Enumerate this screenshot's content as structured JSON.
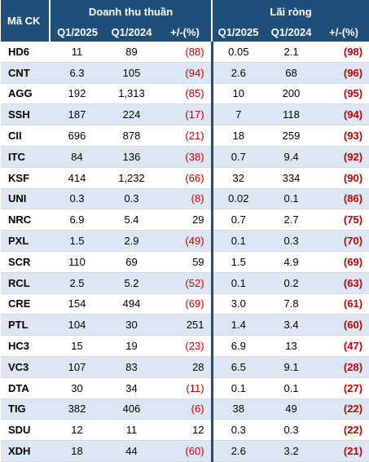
{
  "header": {
    "code_label": "Mã CK",
    "group_revenue": "Doanh thu thuần",
    "group_profit": "Lãi  ròng",
    "sub": [
      "Q1/2025",
      "Q1/2024",
      "+/-(%)",
      "Q1/2025",
      "Q1/2024",
      "+/-(%)"
    ]
  },
  "rows": [
    {
      "code": "HD6",
      "r25": "11",
      "r24": "89",
      "rc": "(88)",
      "rneg": true,
      "p25": "0.05",
      "p24": "2.1",
      "pc": "(98)"
    },
    {
      "code": "CNT",
      "r25": "6.3",
      "r24": "105",
      "rc": "(94)",
      "rneg": true,
      "p25": "2.6",
      "p24": "68",
      "pc": "(96)"
    },
    {
      "code": "AGG",
      "r25": "192",
      "r24": "1,313",
      "rc": "(85)",
      "rneg": true,
      "p25": "10",
      "p24": "200",
      "pc": "(95)"
    },
    {
      "code": "SSH",
      "r25": "187",
      "r24": "224",
      "rc": "(17)",
      "rneg": true,
      "p25": "7",
      "p24": "118",
      "pc": "(94)"
    },
    {
      "code": "CII",
      "r25": "696",
      "r24": "878",
      "rc": "(21)",
      "rneg": true,
      "p25": "18",
      "p24": "259",
      "pc": "(93)"
    },
    {
      "code": "ITC",
      "r25": "84",
      "r24": "136",
      "rc": "(38)",
      "rneg": true,
      "p25": "0.7",
      "p24": "9.4",
      "pc": "(92)"
    },
    {
      "code": "KSF",
      "r25": "414",
      "r24": "1,232",
      "rc": "(66)",
      "rneg": true,
      "p25": "32",
      "p24": "334",
      "pc": "(90)"
    },
    {
      "code": "UNI",
      "r25": "0.3",
      "r24": "0.3",
      "rc": "(8)",
      "rneg": true,
      "p25": "0.02",
      "p24": "0.1",
      "pc": "(86)"
    },
    {
      "code": "NRC",
      "r25": "6.9",
      "r24": "5.4",
      "rc": "29",
      "rneg": false,
      "p25": "0.7",
      "p24": "2.7",
      "pc": "(75)"
    },
    {
      "code": "PXL",
      "r25": "1.5",
      "r24": "2.9",
      "rc": "(49)",
      "rneg": true,
      "p25": "0.1",
      "p24": "0.3",
      "pc": "(70)"
    },
    {
      "code": "SCR",
      "r25": "110",
      "r24": "69",
      "rc": "59",
      "rneg": false,
      "p25": "1.5",
      "p24": "4.9",
      "pc": "(69)"
    },
    {
      "code": "RCL",
      "r25": "2.5",
      "r24": "5.2",
      "rc": "(52)",
      "rneg": true,
      "p25": "0.1",
      "p24": "0.2",
      "pc": "(63)"
    },
    {
      "code": "CRE",
      "r25": "154",
      "r24": "494",
      "rc": "(69)",
      "rneg": true,
      "p25": "3.0",
      "p24": "7.8",
      "pc": "(61)"
    },
    {
      "code": "PTL",
      "r25": "104",
      "r24": "30",
      "rc": "251",
      "rneg": false,
      "p25": "1.4",
      "p24": "3.4",
      "pc": "(60)"
    },
    {
      "code": "HC3",
      "r25": "15",
      "r24": "19",
      "rc": "(23)",
      "rneg": true,
      "p25": "6.9",
      "p24": "13",
      "pc": "(47)"
    },
    {
      "code": "VC3",
      "r25": "107",
      "r24": "83",
      "rc": "28",
      "rneg": false,
      "p25": "6.5",
      "p24": "9.1",
      "pc": "(28)"
    },
    {
      "code": "DTA",
      "r25": "30",
      "r24": "34",
      "rc": "(11)",
      "rneg": true,
      "p25": "0.1",
      "p24": "0.1",
      "pc": "(27)"
    },
    {
      "code": "TIG",
      "r25": "382",
      "r24": "406",
      "rc": "(6)",
      "rneg": true,
      "p25": "38",
      "p24": "49",
      "pc": "(22)"
    },
    {
      "code": "SDU",
      "r25": "12",
      "r24": "11",
      "rc": "12",
      "rneg": false,
      "p25": "0.3",
      "p24": "0.3",
      "pc": "(22)"
    },
    {
      "code": "XDH",
      "r25": "18",
      "r24": "44",
      "rc": "(60)",
      "rneg": true,
      "p25": "2.6",
      "p24": "3.2",
      "pc": "(21)"
    }
  ]
}
